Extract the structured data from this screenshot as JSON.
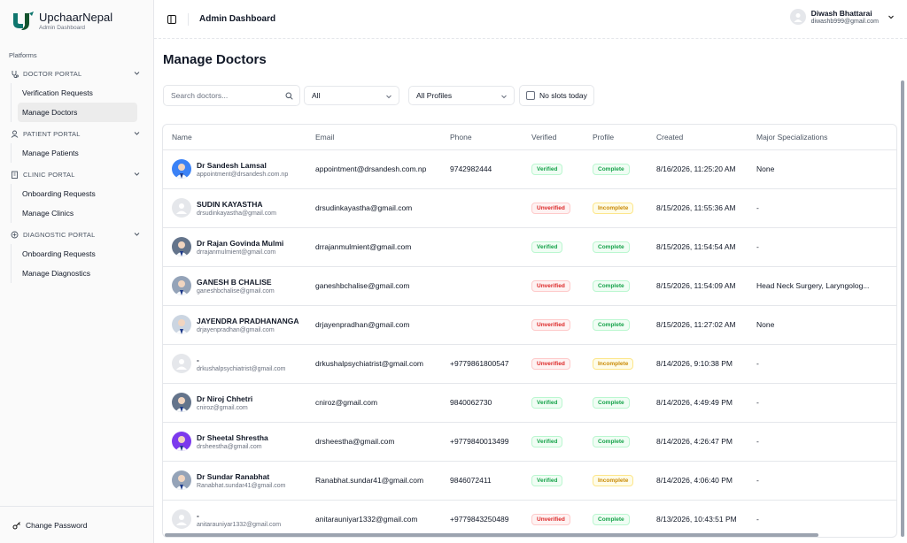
{
  "brand": {
    "name": "UpchaarNepal",
    "subtitle": "Admin Dashboard"
  },
  "sidebar": {
    "section_label": "Platforms",
    "groups": [
      {
        "title": "DOCTOR PORTAL",
        "icon": "stethoscope-icon",
        "items": [
          "Verification Requests",
          "Manage Doctors"
        ]
      },
      {
        "title": "PATIENT PORTAL",
        "icon": "user-icon",
        "items": [
          "Manage Patients"
        ]
      },
      {
        "title": "CLINIC PORTAL",
        "icon": "building-icon",
        "items": [
          "Onboarding Requests",
          "Manage Clinics"
        ]
      },
      {
        "title": "DIAGNOSTIC PORTAL",
        "icon": "microscope-icon",
        "items": [
          "Onboarding Requests",
          "Manage Diagnostics"
        ]
      }
    ],
    "active_item": "Manage Doctors",
    "footer": "Change Password"
  },
  "header": {
    "title": "Admin Dashboard",
    "user": {
      "name": "Diwash Bhattarai",
      "email": "diwashb999@gmail.com"
    }
  },
  "main": {
    "title": "Manage Doctors",
    "search_placeholder": "Search doctors...",
    "filter_status": "All",
    "filter_profile": "All Profiles",
    "checkbox_label": "No slots today",
    "columns": [
      "Name",
      "Email",
      "Phone",
      "Verified",
      "Profile",
      "Created",
      "Major Specializations"
    ],
    "rows": [
      {
        "name": "Dr Sandesh Lamsal",
        "sub": "appointment@drsandesh.com.np",
        "email": "appointment@drsandesh.com.np",
        "phone": "9742982444",
        "verified": "Verified",
        "profile": "Complete",
        "created": "8/16/2026, 11:25:20 AM",
        "spec": "None",
        "photo": true,
        "tone": "#3b82f6"
      },
      {
        "name": "SUDIN KAYASTHA",
        "sub": "drsudinkayastha@gmail.com",
        "email": "drsudinkayastha@gmail.com",
        "phone": "",
        "verified": "Unverified",
        "profile": "Incomplete",
        "created": "8/15/2026, 11:55:36 AM",
        "spec": "-",
        "photo": false,
        "tone": ""
      },
      {
        "name": "Dr Rajan Govinda Mulmi",
        "sub": "drrajanmulmient@gmail.com",
        "email": "drrajanmulmient@gmail.com",
        "phone": "",
        "verified": "Verified",
        "profile": "Complete",
        "created": "8/15/2026, 11:54:54 AM",
        "spec": "-",
        "photo": true,
        "tone": "#64748b"
      },
      {
        "name": "GANESH B CHALISE",
        "sub": "ganeshbchalise@gmail.com",
        "email": "ganeshbchalise@gmail.com",
        "phone": "",
        "verified": "Unverified",
        "profile": "Complete",
        "created": "8/15/2026, 11:54:09 AM",
        "spec": "Head Neck Surgery, Laryngolog...",
        "photo": true,
        "tone": "#94a3b8"
      },
      {
        "name": "JAYENDRA PRADHANANGA",
        "sub": "drjayenpradhan@gmail.com",
        "email": "drjayenpradhan@gmail.com",
        "phone": "",
        "verified": "Unverified",
        "profile": "Complete",
        "created": "8/15/2026, 11:27:02 AM",
        "spec": "None",
        "photo": true,
        "tone": "#cbd5e1"
      },
      {
        "name": "-",
        "sub": "drkushalpsychiatrist@gmail.com",
        "email": "drkushalpsychiatrist@gmail.com",
        "phone": "+9779861800547",
        "verified": "Unverified",
        "profile": "Incomplete",
        "created": "8/14/2026, 9:10:38 PM",
        "spec": "-",
        "photo": false,
        "tone": ""
      },
      {
        "name": "Dr Niroj Chhetri",
        "sub": "cniroz@gmail.com",
        "email": "cniroz@gmail.com",
        "phone": "9840062730",
        "verified": "Verified",
        "profile": "Complete",
        "created": "8/14/2026, 4:49:49 PM",
        "spec": "-",
        "photo": true,
        "tone": "#64748b"
      },
      {
        "name": "Dr Sheetal Shrestha",
        "sub": "drsheestha@gmail.com",
        "email": "drsheestha@gmail.com",
        "phone": "+9779840013499",
        "verified": "Verified",
        "profile": "Complete",
        "created": "8/14/2026, 4:26:47 PM",
        "spec": "-",
        "photo": true,
        "tone": "#7c3aed"
      },
      {
        "name": "Dr Sundar Ranabhat",
        "sub": "Ranabhat.sundar41@gmail.com",
        "email": "Ranabhat.sundar41@gmail.com",
        "phone": "9846072411",
        "verified": "Verified",
        "profile": "Incomplete",
        "created": "8/14/2026, 4:06:40 PM",
        "spec": "-",
        "photo": true,
        "tone": "#94a3b8"
      },
      {
        "name": "-",
        "sub": "anitarauniyar1332@gmail.com",
        "email": "anitarauniyar1332@gmail.com",
        "phone": "+9779843250489",
        "verified": "Unverified",
        "profile": "Complete",
        "created": "8/13/2026, 10:43:51 PM",
        "spec": "-",
        "photo": false,
        "tone": ""
      }
    ]
  }
}
